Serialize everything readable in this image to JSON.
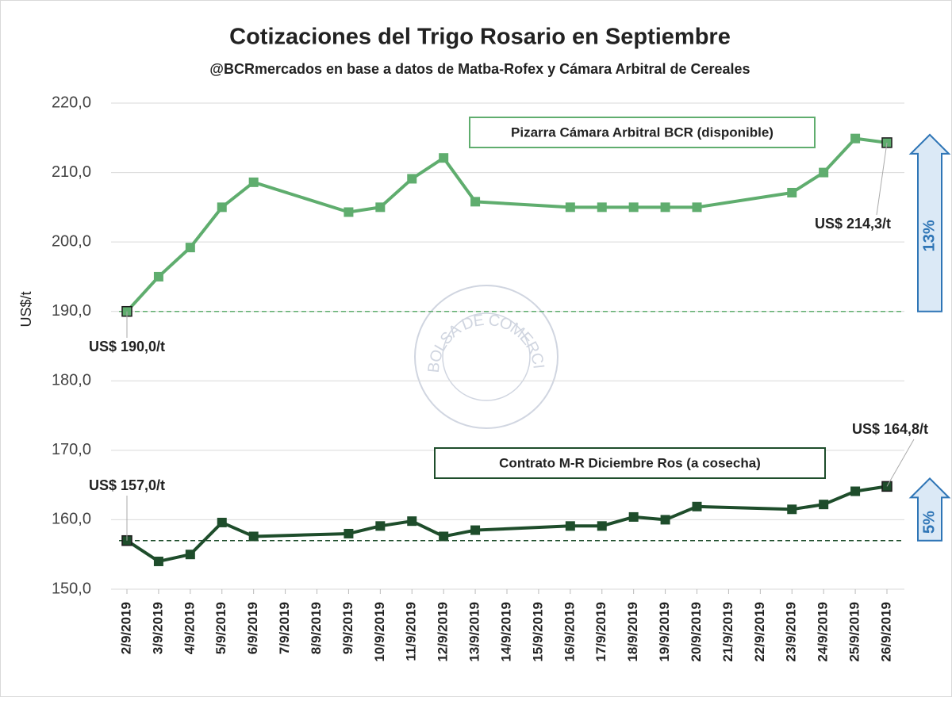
{
  "chart_data": {
    "type": "line",
    "title": "Cotizaciones del Trigo Rosario en Septiembre",
    "subtitle": "@BCRmercados  en base a datos de Matba-Rofex y Cámara Arbitral  de Cereales",
    "y_label": "US$/t",
    "watermark": "BOLSA DE COMERCIO DE ROSARIO",
    "categories": [
      "2/9/2019",
      "3/9/2019",
      "4/9/2019",
      "5/9/2019",
      "6/9/2019",
      "7/9/2019",
      "8/9/2019",
      "9/9/2019",
      "10/9/2019",
      "11/9/2019",
      "12/9/2019",
      "13/9/2019",
      "14/9/2019",
      "15/9/2019",
      "16/9/2019",
      "17/9/2019",
      "18/9/2019",
      "19/9/2019",
      "20/9/2019",
      "21/9/2019",
      "22/9/2019",
      "23/9/2019",
      "24/9/2019",
      "25/9/2019",
      "26/9/2019"
    ],
    "ylim": [
      150,
      220
    ],
    "yticks": [
      {
        "value": 150,
        "label": "150,0"
      },
      {
        "value": 160,
        "label": "160,0"
      },
      {
        "value": 170,
        "label": "170,0"
      },
      {
        "value": 180,
        "label": "180,0"
      },
      {
        "value": 190,
        "label": "190,0"
      },
      {
        "value": 200,
        "label": "200,0"
      },
      {
        "value": 210,
        "label": "210,0"
      },
      {
        "value": 220,
        "label": "220,0"
      }
    ],
    "grid": true,
    "series": [
      {
        "name": "Pizarra Cámara Arbitral BCR (disponible)",
        "color": "#5fad6e",
        "values": [
          190.0,
          195.0,
          199.2,
          205.0,
          208.6,
          null,
          null,
          204.3,
          205.0,
          209.1,
          212.1,
          205.8,
          null,
          null,
          205.0,
          205.0,
          205.0,
          205.0,
          205.0,
          null,
          null,
          207.1,
          210.0,
          214.9,
          214.3
        ],
        "value_labels": [
          "US$ 190,0/t",
          null,
          null,
          null,
          null,
          null,
          null,
          null,
          null,
          null,
          null,
          null,
          null,
          null,
          null,
          null,
          null,
          null,
          null,
          null,
          null,
          null,
          null,
          null,
          "US$ 214,3/t"
        ],
        "baseline": 190.0,
        "change_label": "13%"
      },
      {
        "name": "Contrato M-R Diciembre Ros (a cosecha)",
        "color": "#1e4d2b",
        "values": [
          157.0,
          154.0,
          155.0,
          159.6,
          157.6,
          null,
          null,
          158.0,
          159.1,
          159.8,
          157.6,
          158.5,
          null,
          null,
          159.1,
          159.1,
          160.4,
          160.0,
          161.9,
          null,
          null,
          161.5,
          162.2,
          164.1,
          164.8
        ],
        "value_labels": [
          "US$ 157,0/t",
          null,
          null,
          null,
          null,
          null,
          null,
          null,
          null,
          null,
          null,
          null,
          null,
          null,
          null,
          null,
          null,
          null,
          null,
          null,
          null,
          null,
          null,
          null,
          "US$ 164,8/t"
        ],
        "baseline": 157.0,
        "change_label": "5%"
      }
    ]
  }
}
